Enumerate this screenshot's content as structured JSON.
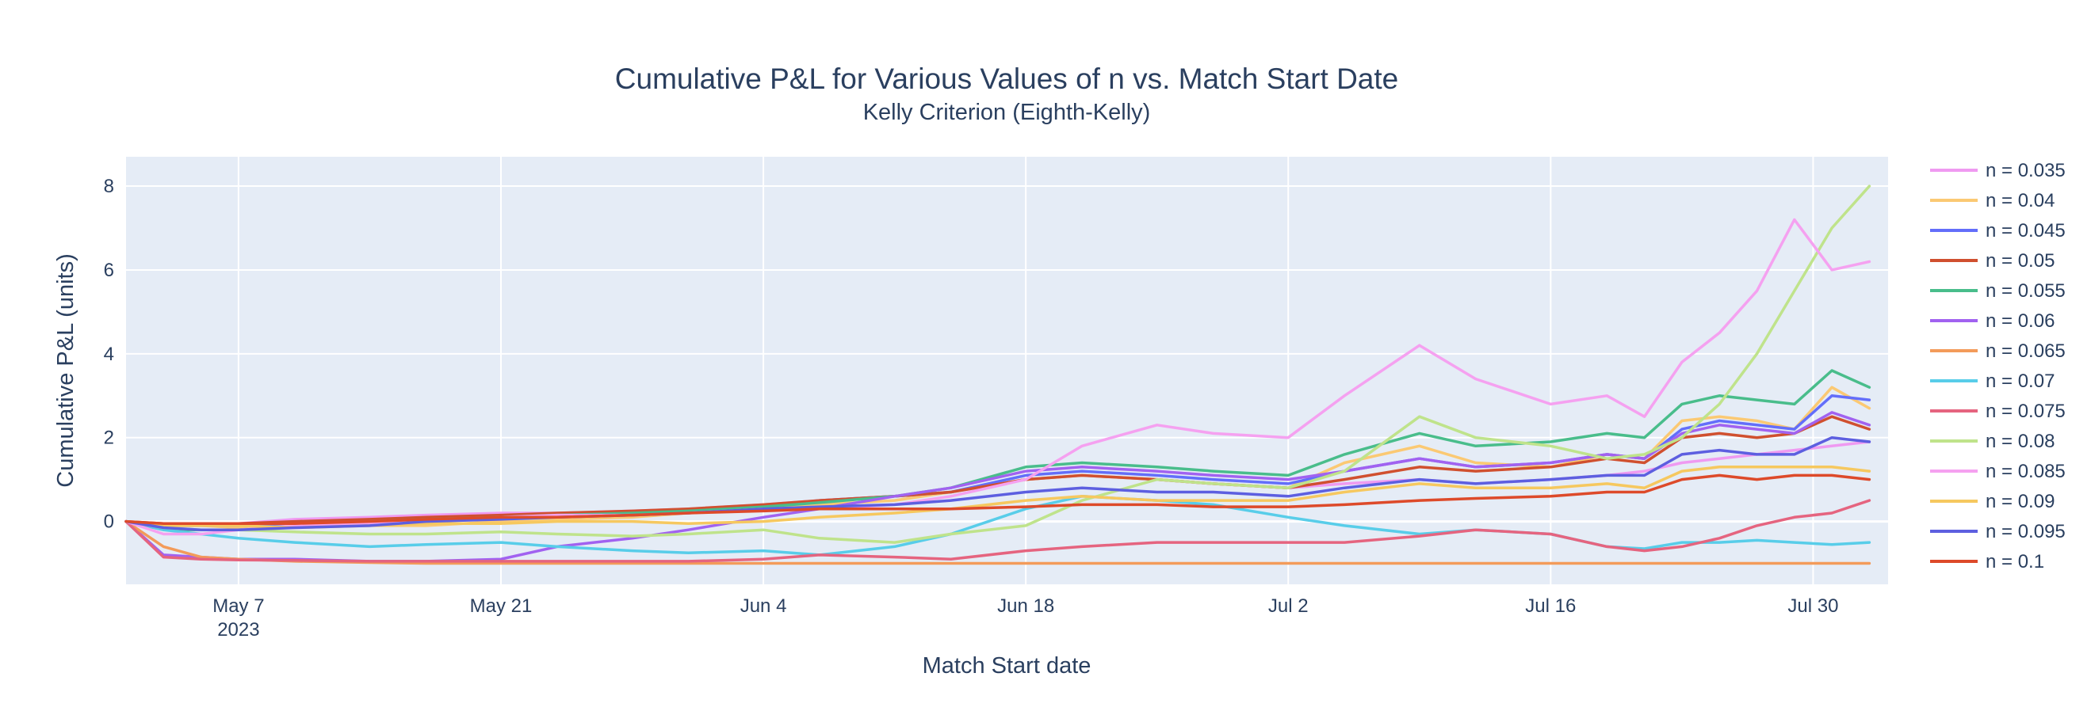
{
  "chart_data": {
    "type": "line",
    "title": "Cumulative P&L for Various Values of n vs. Match Start Date",
    "subtitle": "Kelly Criterion (Eighth-Kelly)",
    "xlabel": "Match Start date",
    "ylabel": "Cumulative P&L (units)",
    "x_range_days": [
      -6,
      88
    ],
    "x_origin_date": "2023-05-07",
    "ylim": [
      -1.5,
      8.7
    ],
    "x_ticks": [
      {
        "day": 0,
        "label": "May 7",
        "label2": "2023"
      },
      {
        "day": 14,
        "label": "May 21"
      },
      {
        "day": 28,
        "label": "Jun 4"
      },
      {
        "day": 42,
        "label": "Jun 18"
      },
      {
        "day": 56,
        "label": "Jul 2"
      },
      {
        "day": 70,
        "label": "Jul 16"
      },
      {
        "day": 84,
        "label": "Jul 30"
      }
    ],
    "y_ticks": [
      {
        "value": 0,
        "label": "0"
      },
      {
        "value": 2,
        "label": "2"
      },
      {
        "value": 4,
        "label": "4"
      },
      {
        "value": 6,
        "label": "6"
      },
      {
        "value": 8,
        "label": "8"
      }
    ],
    "x": [
      -6,
      -4,
      -2,
      0,
      3,
      7,
      10,
      14,
      17,
      21,
      24,
      28,
      31,
      35,
      38,
      42,
      45,
      49,
      52,
      56,
      59,
      63,
      66,
      70,
      73,
      75,
      77,
      79,
      81,
      83,
      85,
      87
    ],
    "series": [
      {
        "name": "n = 0.035",
        "color": "#ef9af1",
        "values": [
          0,
          -0.1,
          -0.05,
          -0.05,
          0.05,
          0.1,
          0.15,
          0.2,
          0.2,
          0.25,
          0.3,
          0.4,
          0.5,
          0.6,
          0.7,
          1.0,
          1.1,
          1.0,
          0.9,
          0.8,
          0.9,
          1.0,
          0.9,
          1.0,
          1.1,
          1.2,
          1.4,
          1.5,
          1.6,
          1.7,
          1.8,
          1.9
        ]
      },
      {
        "name": "n = 0.04",
        "color": "#fbc973",
        "values": [
          0,
          -0.1,
          -0.1,
          -0.15,
          -0.1,
          -0.1,
          -0.1,
          0,
          0.05,
          0.1,
          0.2,
          0.3,
          0.4,
          0.5,
          0.7,
          1.0,
          1.1,
          1.0,
          0.9,
          0.8,
          1.4,
          1.8,
          1.4,
          1.3,
          1.6,
          1.5,
          2.4,
          2.5,
          2.4,
          2.2,
          3.2,
          2.7
        ]
      },
      {
        "name": "n = 0.045",
        "color": "#636efa",
        "values": [
          0,
          -0.1,
          -0.1,
          -0.1,
          -0.05,
          0,
          0.05,
          0.1,
          0.15,
          0.2,
          0.25,
          0.35,
          0.5,
          0.6,
          0.7,
          1.1,
          1.2,
          1.1,
          1.0,
          0.9,
          1.2,
          1.5,
          1.3,
          1.4,
          1.6,
          1.5,
          2.2,
          2.4,
          2.3,
          2.2,
          3.0,
          2.9
        ]
      },
      {
        "name": "n = 0.05",
        "color": "#d0502f",
        "values": [
          0,
          -0.05,
          -0.05,
          -0.05,
          0,
          0.05,
          0.1,
          0.15,
          0.2,
          0.25,
          0.3,
          0.4,
          0.5,
          0.6,
          0.7,
          1.0,
          1.1,
          1.0,
          0.9,
          0.8,
          1.0,
          1.3,
          1.2,
          1.3,
          1.5,
          1.4,
          2.0,
          2.1,
          2.0,
          2.1,
          2.5,
          2.2
        ]
      },
      {
        "name": "n = 0.055",
        "color": "#49bd8b",
        "values": [
          0,
          -0.2,
          -0.2,
          -0.2,
          -0.1,
          0,
          0.05,
          0.1,
          0.15,
          0.2,
          0.25,
          0.35,
          0.45,
          0.6,
          0.8,
          1.3,
          1.4,
          1.3,
          1.2,
          1.1,
          1.6,
          2.1,
          1.8,
          1.9,
          2.1,
          2.0,
          2.8,
          3.0,
          2.9,
          2.8,
          3.6,
          3.2
        ]
      },
      {
        "name": "n = 0.06",
        "color": "#a162f0",
        "values": [
          0,
          -0.8,
          -0.85,
          -0.9,
          -0.9,
          -0.95,
          -0.95,
          -0.9,
          -0.6,
          -0.4,
          -0.2,
          0.1,
          0.3,
          0.6,
          0.8,
          1.2,
          1.3,
          1.2,
          1.1,
          1.0,
          1.2,
          1.5,
          1.3,
          1.4,
          1.6,
          1.5,
          2.1,
          2.3,
          2.2,
          2.1,
          2.6,
          2.3
        ]
      },
      {
        "name": "n = 0.065",
        "color": "#f39b5a",
        "values": [
          0,
          -0.6,
          -0.85,
          -0.9,
          -0.95,
          -0.98,
          -1.0,
          -1.0,
          -1.0,
          -1.0,
          -1.0,
          -1.0,
          -1.0,
          -1.0,
          -1.0,
          -1.0,
          -1.0,
          -1.0,
          -1.0,
          -1.0,
          -1.0,
          -1.0,
          -1.0,
          -1.0,
          -1.0,
          -1.0,
          -1.0,
          -1.0,
          -1.0,
          -1.0,
          -1.0,
          -1.0
        ]
      },
      {
        "name": "n = 0.07",
        "color": "#58cde9",
        "values": [
          0,
          -0.2,
          -0.3,
          -0.4,
          -0.5,
          -0.6,
          -0.55,
          -0.5,
          -0.6,
          -0.7,
          -0.75,
          -0.7,
          -0.8,
          -0.6,
          -0.3,
          0.3,
          0.6,
          0.5,
          0.4,
          0.1,
          -0.1,
          -0.3,
          -0.2,
          -0.3,
          -0.6,
          -0.65,
          -0.5,
          -0.5,
          -0.45,
          -0.5,
          -0.55,
          -0.5
        ]
      },
      {
        "name": "n = 0.075",
        "color": "#e5647f",
        "values": [
          0,
          -0.85,
          -0.9,
          -0.92,
          -0.93,
          -0.95,
          -0.95,
          -0.95,
          -0.95,
          -0.95,
          -0.95,
          -0.9,
          -0.8,
          -0.85,
          -0.9,
          -0.7,
          -0.6,
          -0.5,
          -0.5,
          -0.5,
          -0.5,
          -0.35,
          -0.2,
          -0.3,
          -0.6,
          -0.7,
          -0.6,
          -0.4,
          -0.1,
          0.1,
          0.2,
          0.5
        ]
      },
      {
        "name": "n = 0.08",
        "color": "#bfe38b",
        "values": [
          0,
          -0.15,
          -0.2,
          -0.2,
          -0.25,
          -0.3,
          -0.3,
          -0.25,
          -0.3,
          -0.35,
          -0.3,
          -0.2,
          -0.4,
          -0.5,
          -0.3,
          -0.1,
          0.5,
          1.0,
          0.9,
          0.8,
          1.2,
          2.5,
          2.0,
          1.8,
          1.5,
          1.6,
          2.0,
          2.8,
          4.0,
          5.5,
          7.0,
          8.0
        ]
      },
      {
        "name": "n = 0.085",
        "color": "#f5a1f0",
        "values": [
          0,
          -0.3,
          -0.3,
          -0.2,
          -0.1,
          -0.05,
          0,
          0.1,
          0.15,
          0.15,
          0.2,
          0.3,
          0.3,
          0.4,
          0.6,
          1.0,
          1.8,
          2.3,
          2.1,
          2.0,
          3.0,
          4.2,
          3.4,
          2.8,
          3.0,
          2.5,
          3.8,
          4.5,
          5.5,
          7.2,
          6.0,
          6.2
        ]
      },
      {
        "name": "n = 0.09",
        "color": "#f6c85f",
        "values": [
          0,
          -0.1,
          -0.1,
          -0.1,
          -0.15,
          -0.1,
          -0.05,
          -0.05,
          0,
          0,
          -0.05,
          0,
          0.1,
          0.2,
          0.3,
          0.5,
          0.6,
          0.5,
          0.5,
          0.5,
          0.7,
          0.9,
          0.8,
          0.8,
          0.9,
          0.8,
          1.2,
          1.3,
          1.3,
          1.3,
          1.3,
          1.2
        ]
      },
      {
        "name": "n = 0.095",
        "color": "#5d5fe0",
        "values": [
          0,
          -0.15,
          -0.2,
          -0.2,
          -0.15,
          -0.1,
          0,
          0.05,
          0.1,
          0.15,
          0.2,
          0.3,
          0.35,
          0.4,
          0.5,
          0.7,
          0.8,
          0.7,
          0.7,
          0.6,
          0.8,
          1.0,
          0.9,
          1.0,
          1.1,
          1.1,
          1.6,
          1.7,
          1.6,
          1.6,
          2.0,
          1.9
        ]
      },
      {
        "name": "n = 0.1",
        "color": "#dd4a2a",
        "values": [
          0,
          -0.05,
          -0.05,
          -0.05,
          -0.05,
          0,
          0.05,
          0.1,
          0.1,
          0.15,
          0.2,
          0.25,
          0.3,
          0.3,
          0.3,
          0.35,
          0.4,
          0.4,
          0.35,
          0.35,
          0.4,
          0.5,
          0.55,
          0.6,
          0.7,
          0.7,
          1.0,
          1.1,
          1.0,
          1.1,
          1.1,
          1.0
        ]
      }
    ]
  }
}
